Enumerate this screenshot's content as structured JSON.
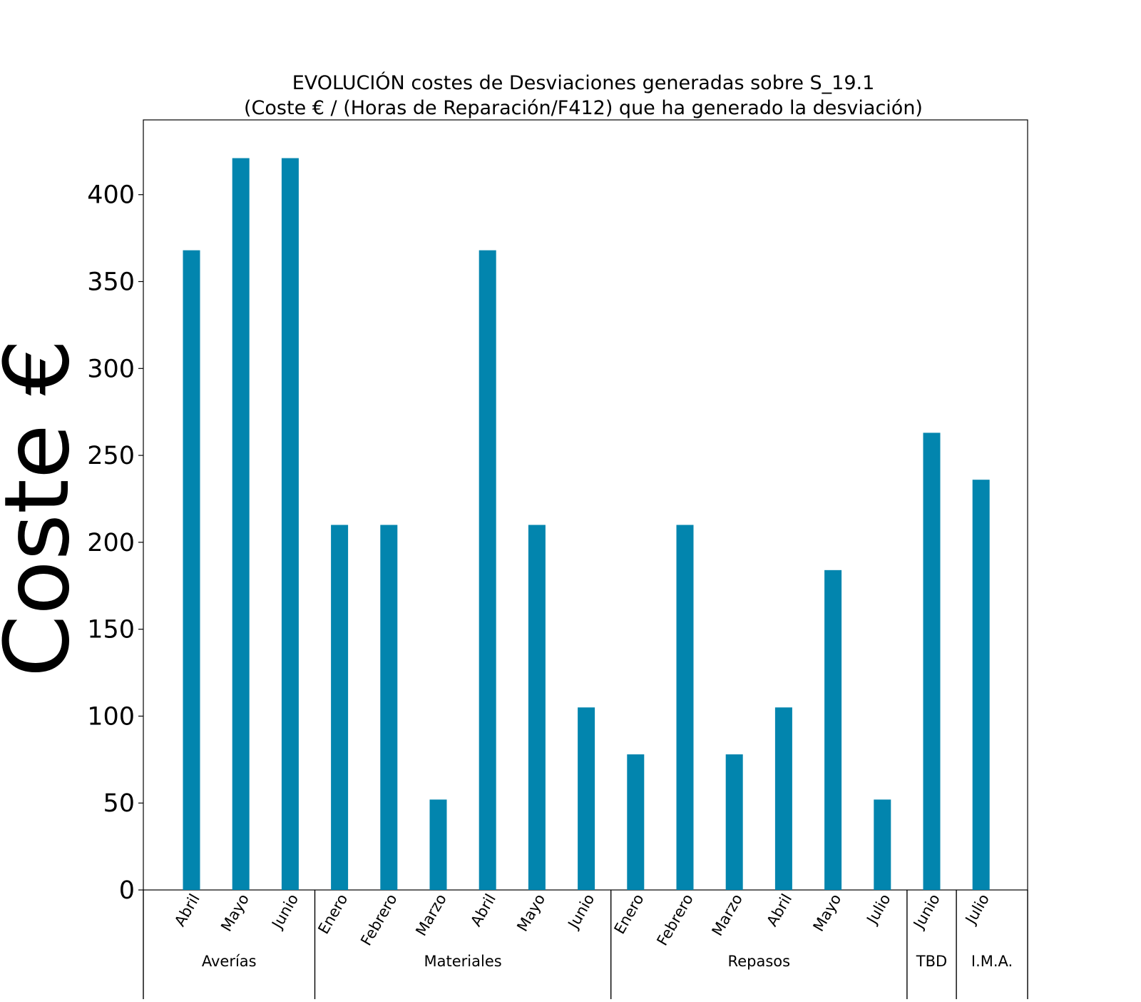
{
  "chart_data": {
    "type": "bar",
    "title": [
      "EVOLUCIÓN costes de Desviaciones  generadas  sobre S_19.1",
      "(Coste € / (Horas de Reparación/F412) que ha generado la desviación)"
    ],
    "ylabel": "Coste €",
    "xlabel": "",
    "ylim": [
      0,
      443
    ],
    "yticks": [
      0,
      50,
      100,
      150,
      200,
      250,
      300,
      350,
      400
    ],
    "grid": false,
    "bar_color": "#0285ae",
    "categories": [
      "Abril",
      "Mayo",
      "Junio",
      "Enero",
      "Febrero",
      "Marzo",
      "Abril",
      "Mayo",
      "Junio",
      "Enero",
      "Febrero",
      "Marzo",
      "Abril",
      "Mayo",
      "Julio",
      "Junio",
      "Julio"
    ],
    "values": [
      368,
      421,
      421,
      210,
      210,
      52,
      368,
      210,
      105,
      78,
      210,
      78,
      105,
      184,
      52,
      263,
      236
    ],
    "groups": [
      {
        "label": "Averías",
        "count": 3
      },
      {
        "label": "Materiales",
        "count": 6
      },
      {
        "label": "Repasos",
        "count": 6
      },
      {
        "label": "TBD",
        "count": 1
      },
      {
        "label": "I.M.A.",
        "count": 1
      }
    ]
  }
}
